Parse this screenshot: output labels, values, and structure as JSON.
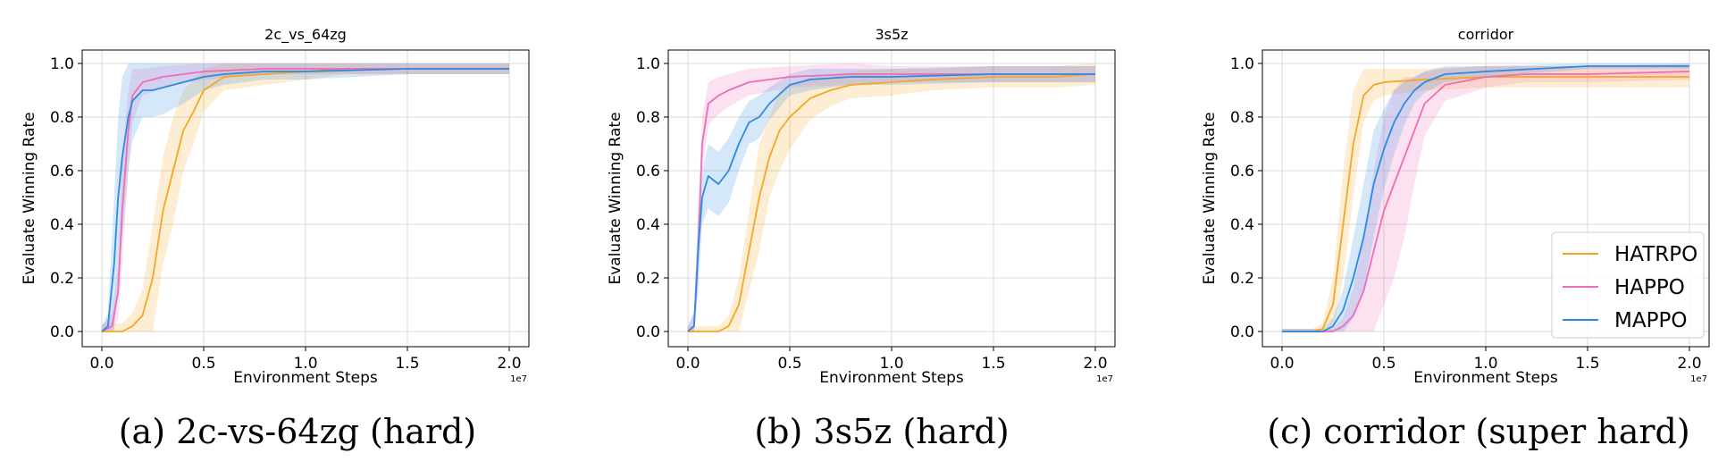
{
  "figure": {
    "captions": [
      "(a) 2c-vs-64zg (hard)",
      "(b) 3s5z (hard)",
      "(c) corridor (super hard)"
    ],
    "legend": [
      {
        "name": "HATRPO",
        "color": "#f5a623"
      },
      {
        "name": "HAPPO",
        "color": "#f06cb4"
      },
      {
        "name": "MAPPO",
        "color": "#2b8ae6"
      }
    ]
  },
  "chart_data": [
    {
      "type": "line",
      "title": "2c_vs_64zg",
      "xlabel": "Environment Steps",
      "ylabel": "Evaluate Winning Rate",
      "x_offset_label": "1e7",
      "xlim": [
        0.0,
        2.0
      ],
      "ylim": [
        0.0,
        1.0
      ],
      "xticks": [
        "0.0",
        "0.5",
        "1.0",
        "1.5",
        "2.0"
      ],
      "yticks": [
        "0.0",
        "0.2",
        "0.4",
        "0.6",
        "0.8",
        "1.0"
      ],
      "grid": true,
      "series": [
        {
          "name": "HATRPO",
          "color": "#f5a623",
          "x": [
            0,
            0.1,
            0.15,
            0.2,
            0.25,
            0.3,
            0.35,
            0.4,
            0.45,
            0.5,
            0.6,
            0.8,
            1.0,
            1.2,
            1.5,
            1.8,
            2.0
          ],
          "y": [
            0,
            0,
            0.02,
            0.06,
            0.2,
            0.45,
            0.6,
            0.75,
            0.82,
            0.9,
            0.95,
            0.96,
            0.97,
            0.98,
            0.98,
            0.98,
            0.98
          ],
          "band": [
            0.03,
            0.03,
            0.05,
            0.1,
            0.2,
            0.2,
            0.2,
            0.15,
            0.12,
            0.08,
            0.05,
            0.04,
            0.03,
            0.02,
            0.02,
            0.02,
            0.02
          ]
        },
        {
          "name": "HAPPO",
          "color": "#f06cb4",
          "x": [
            0,
            0.05,
            0.08,
            0.1,
            0.13,
            0.15,
            0.2,
            0.3,
            0.5,
            0.8,
            1.0,
            1.5,
            2.0
          ],
          "y": [
            0,
            0.02,
            0.15,
            0.45,
            0.75,
            0.88,
            0.93,
            0.95,
            0.97,
            0.98,
            0.98,
            0.98,
            0.98
          ],
          "band": [
            0.02,
            0.05,
            0.1,
            0.2,
            0.15,
            0.1,
            0.05,
            0.04,
            0.03,
            0.02,
            0.02,
            0.02,
            0.02
          ]
        },
        {
          "name": "MAPPO",
          "color": "#2b8ae6",
          "x": [
            0,
            0.03,
            0.06,
            0.08,
            0.1,
            0.13,
            0.15,
            0.2,
            0.25,
            0.3,
            0.4,
            0.5,
            0.6,
            0.8,
            1.0,
            1.5,
            2.0
          ],
          "y": [
            0,
            0.02,
            0.25,
            0.5,
            0.65,
            0.8,
            0.86,
            0.9,
            0.9,
            0.91,
            0.93,
            0.95,
            0.96,
            0.97,
            0.97,
            0.98,
            0.98
          ],
          "band": [
            0.02,
            0.05,
            0.25,
            0.3,
            0.3,
            0.2,
            0.15,
            0.1,
            0.1,
            0.1,
            0.08,
            0.05,
            0.04,
            0.03,
            0.03,
            0.02,
            0.02
          ]
        }
      ]
    },
    {
      "type": "line",
      "title": "3s5z",
      "xlabel": "Environment Steps",
      "ylabel": "Evaluate Winning Rate",
      "x_offset_label": "1e7",
      "xlim": [
        0.0,
        2.0
      ],
      "ylim": [
        0.0,
        1.0
      ],
      "xticks": [
        "0.0",
        "0.5",
        "1.0",
        "1.5",
        "2.0"
      ],
      "yticks": [
        "0.0",
        "0.2",
        "0.4",
        "0.6",
        "0.8",
        "1.0"
      ],
      "grid": true,
      "series": [
        {
          "name": "HATRPO",
          "color": "#f5a623",
          "x": [
            0,
            0.15,
            0.2,
            0.25,
            0.3,
            0.35,
            0.4,
            0.45,
            0.5,
            0.6,
            0.7,
            0.8,
            1.0,
            1.2,
            1.5,
            1.8,
            2.0
          ],
          "y": [
            0,
            0,
            0.02,
            0.1,
            0.3,
            0.5,
            0.65,
            0.75,
            0.8,
            0.87,
            0.9,
            0.92,
            0.93,
            0.94,
            0.95,
            0.95,
            0.96
          ],
          "band": [
            0.02,
            0.02,
            0.04,
            0.1,
            0.15,
            0.2,
            0.15,
            0.15,
            0.12,
            0.08,
            0.06,
            0.05,
            0.05,
            0.04,
            0.04,
            0.04,
            0.04
          ]
        },
        {
          "name": "HAPPO",
          "color": "#f06cb4",
          "x": [
            0,
            0.03,
            0.05,
            0.07,
            0.1,
            0.15,
            0.2,
            0.3,
            0.5,
            0.8,
            1.0,
            1.5,
            2.0
          ],
          "y": [
            0,
            0.02,
            0.3,
            0.7,
            0.85,
            0.88,
            0.9,
            0.93,
            0.95,
            0.96,
            0.96,
            0.96,
            0.96
          ],
          "band": [
            0.02,
            0.05,
            0.15,
            0.1,
            0.08,
            0.07,
            0.06,
            0.05,
            0.04,
            0.04,
            0.03,
            0.03,
            0.03
          ]
        },
        {
          "name": "MAPPO",
          "color": "#2b8ae6",
          "x": [
            0,
            0.03,
            0.05,
            0.07,
            0.1,
            0.15,
            0.2,
            0.25,
            0.3,
            0.35,
            0.4,
            0.5,
            0.6,
            0.8,
            1.0,
            1.5,
            2.0
          ],
          "y": [
            0,
            0.02,
            0.3,
            0.5,
            0.58,
            0.55,
            0.6,
            0.7,
            0.78,
            0.8,
            0.85,
            0.92,
            0.94,
            0.95,
            0.95,
            0.96,
            0.96
          ],
          "band": [
            0.02,
            0.05,
            0.15,
            0.1,
            0.12,
            0.12,
            0.12,
            0.1,
            0.08,
            0.08,
            0.06,
            0.04,
            0.04,
            0.03,
            0.03,
            0.03,
            0.03
          ]
        }
      ]
    },
    {
      "type": "line",
      "title": "corridor",
      "xlabel": "Environment Steps",
      "ylabel": "Evaluate Winning Rate",
      "x_offset_label": "1e7",
      "xlim": [
        0.0,
        2.0
      ],
      "ylim": [
        0.0,
        1.0
      ],
      "xticks": [
        "0.0",
        "0.5",
        "1.0",
        "1.5",
        "2.0"
      ],
      "yticks": [
        "0.0",
        "0.2",
        "0.4",
        "0.6",
        "0.8",
        "1.0"
      ],
      "grid": true,
      "legend_position": "lower-right",
      "series": [
        {
          "name": "HATRPO",
          "color": "#f5a623",
          "x": [
            0,
            0.15,
            0.2,
            0.25,
            0.3,
            0.35,
            0.4,
            0.45,
            0.5,
            0.7,
            1.0,
            1.5,
            2.0
          ],
          "y": [
            0,
            0,
            0.01,
            0.1,
            0.4,
            0.7,
            0.88,
            0.92,
            0.93,
            0.94,
            0.95,
            0.95,
            0.95
          ],
          "band": [
            0.01,
            0.01,
            0.02,
            0.1,
            0.2,
            0.2,
            0.1,
            0.06,
            0.05,
            0.04,
            0.04,
            0.04,
            0.04
          ]
        },
        {
          "name": "HAPPO",
          "color": "#f06cb4",
          "x": [
            0,
            0.25,
            0.3,
            0.35,
            0.4,
            0.45,
            0.5,
            0.55,
            0.6,
            0.65,
            0.7,
            0.8,
            1.0,
            1.2,
            1.5,
            2.0
          ],
          "y": [
            0,
            0,
            0.02,
            0.06,
            0.15,
            0.3,
            0.45,
            0.55,
            0.65,
            0.75,
            0.85,
            0.92,
            0.95,
            0.96,
            0.96,
            0.97
          ],
          "band": [
            0.01,
            0.01,
            0.03,
            0.1,
            0.2,
            0.3,
            0.35,
            0.35,
            0.3,
            0.2,
            0.12,
            0.06,
            0.04,
            0.03,
            0.03,
            0.03
          ]
        },
        {
          "name": "MAPPO",
          "color": "#2b8ae6",
          "x": [
            0,
            0.2,
            0.25,
            0.3,
            0.35,
            0.4,
            0.45,
            0.5,
            0.55,
            0.6,
            0.65,
            0.7,
            0.8,
            1.0,
            1.5,
            2.0
          ],
          "y": [
            0,
            0,
            0.02,
            0.08,
            0.2,
            0.35,
            0.55,
            0.68,
            0.78,
            0.85,
            0.9,
            0.93,
            0.96,
            0.97,
            0.99,
            0.99
          ],
          "band": [
            0.01,
            0.01,
            0.03,
            0.08,
            0.15,
            0.2,
            0.2,
            0.15,
            0.12,
            0.08,
            0.05,
            0.04,
            0.03,
            0.02,
            0.01,
            0.01
          ]
        }
      ]
    }
  ]
}
